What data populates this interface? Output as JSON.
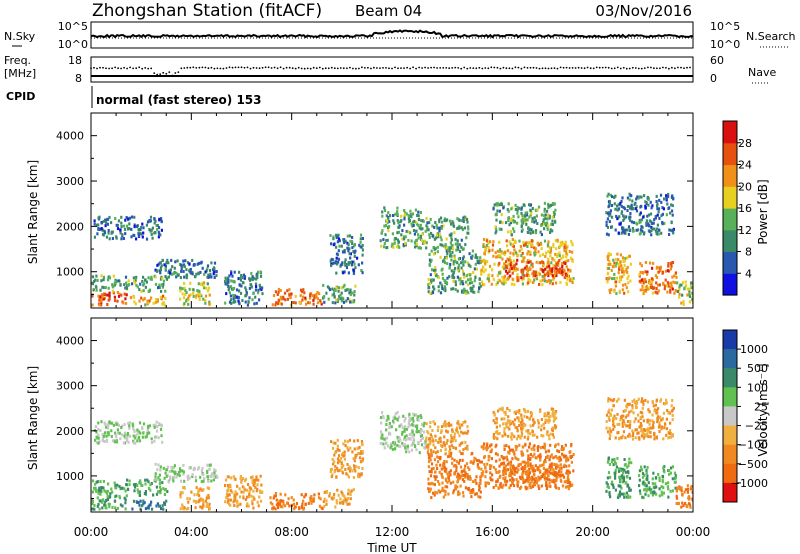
{
  "header": {
    "title": "Zhongshan Station (fitACF)",
    "beam": "Beam 04",
    "date": "03/Nov/2016",
    "mode": "normal (fast stereo) 153"
  },
  "panels": {
    "nsky_label": "N.Sky",
    "nsearch_label": "N.Search",
    "noise_top": "10^5",
    "noise_bottom": "10^0",
    "freq_label_1": "Freq.",
    "freq_label_2": "[MHz]",
    "freq_top": "18",
    "freq_bottom": "8",
    "nave_label": "Nave",
    "nave_top": "60",
    "nave_bottom": "0",
    "cpid_label": "CPID",
    "ylabel": "Slant Range [km]",
    "xlabel": "Time UT",
    "power_label": "Power [dB]",
    "velocity_label": "Velocity [m s⁻¹]"
  },
  "chart_data": {
    "type": "heatmap",
    "x_ticks": [
      "00:00",
      "04:00",
      "08:00",
      "12:00",
      "16:00",
      "20:00",
      "00:00"
    ],
    "y_ticks": [
      "1000",
      "2000",
      "3000",
      "4000"
    ],
    "ylim": [
      200,
      4500
    ],
    "power_scale": {
      "ticks": [
        "4",
        "8",
        "12",
        "16",
        "20",
        "24",
        "28"
      ],
      "colors": [
        "#1010e0",
        "#2858b0",
        "#3a8a6a",
        "#58b058",
        "#e8d020",
        "#f09018",
        "#e85010",
        "#d81010"
      ]
    },
    "velocity_scale": {
      "ticks": [
        "1000",
        "500",
        "100",
        "25",
        "−25",
        "−100",
        "−500",
        "−1000"
      ],
      "colors": [
        "#1a3aa8",
        "#2a6aa0",
        "#3a8a6a",
        "#60c050",
        "#c8c8c8",
        "#f0b040",
        "#f08a20",
        "#f06a10",
        "#e01010"
      ]
    },
    "regions": [
      {
        "t0": 0.0,
        "t1": 1.4,
        "r0": 250,
        "r1": 550,
        "power": 26,
        "velocity": 100
      },
      {
        "t0": 0.0,
        "t1": 3.0,
        "r0": 550,
        "r1": 900,
        "power": 12,
        "velocity": 100
      },
      {
        "t0": 0.1,
        "t1": 2.8,
        "r0": 1700,
        "r1": 2200,
        "power": 8,
        "velocity": 25
      },
      {
        "t0": 1.5,
        "t1": 3.0,
        "r0": 250,
        "r1": 450,
        "power": 20,
        "velocity": 500
      },
      {
        "t0": 2.5,
        "t1": 5.0,
        "r0": 850,
        "r1": 1250,
        "power": 8,
        "velocity": 25
      },
      {
        "t0": 3.5,
        "t1": 4.7,
        "r0": 250,
        "r1": 750,
        "power": 16,
        "velocity": -100
      },
      {
        "t0": 5.3,
        "t1": 6.8,
        "r0": 250,
        "r1": 1000,
        "power": 8,
        "velocity": -100
      },
      {
        "t0": 7.1,
        "t1": 9.2,
        "r0": 250,
        "r1": 600,
        "power": 24,
        "velocity": -500
      },
      {
        "t0": 9.2,
        "t1": 10.5,
        "r0": 300,
        "r1": 700,
        "power": 12,
        "velocity": -100
      },
      {
        "t0": 9.5,
        "t1": 10.8,
        "r0": 950,
        "r1": 1800,
        "power": 8,
        "velocity": -100
      },
      {
        "t0": 11.5,
        "t1": 13.3,
        "r0": 1500,
        "r1": 2400,
        "power": 12,
        "velocity": 25
      },
      {
        "t0": 13.3,
        "t1": 15.0,
        "r0": 1500,
        "r1": 2200,
        "power": 12,
        "velocity": -100
      },
      {
        "t0": 13.4,
        "t1": 15.5,
        "r0": 500,
        "r1": 1500,
        "power": 12,
        "velocity": -500
      },
      {
        "t0": 15.5,
        "t1": 19.2,
        "r0": 700,
        "r1": 1700,
        "power": 20,
        "velocity": -500
      },
      {
        "t0": 16.5,
        "t1": 19.0,
        "r0": 850,
        "r1": 1250,
        "power": 26,
        "velocity": -500
      },
      {
        "t0": 16.0,
        "t1": 18.5,
        "r0": 1800,
        "r1": 2500,
        "power": 12,
        "velocity": -100
      },
      {
        "t0": 20.5,
        "t1": 21.5,
        "r0": 500,
        "r1": 1400,
        "power": 20,
        "velocity": 100
      },
      {
        "t0": 21.8,
        "t1": 23.3,
        "r0": 500,
        "r1": 1200,
        "power": 24,
        "velocity": 100
      },
      {
        "t0": 20.5,
        "t1": 23.2,
        "r0": 1800,
        "r1": 2700,
        "power": 8,
        "velocity": -100
      },
      {
        "t0": 23.3,
        "t1": 24.0,
        "r0": 250,
        "r1": 800,
        "power": 16,
        "velocity": -500
      }
    ]
  }
}
